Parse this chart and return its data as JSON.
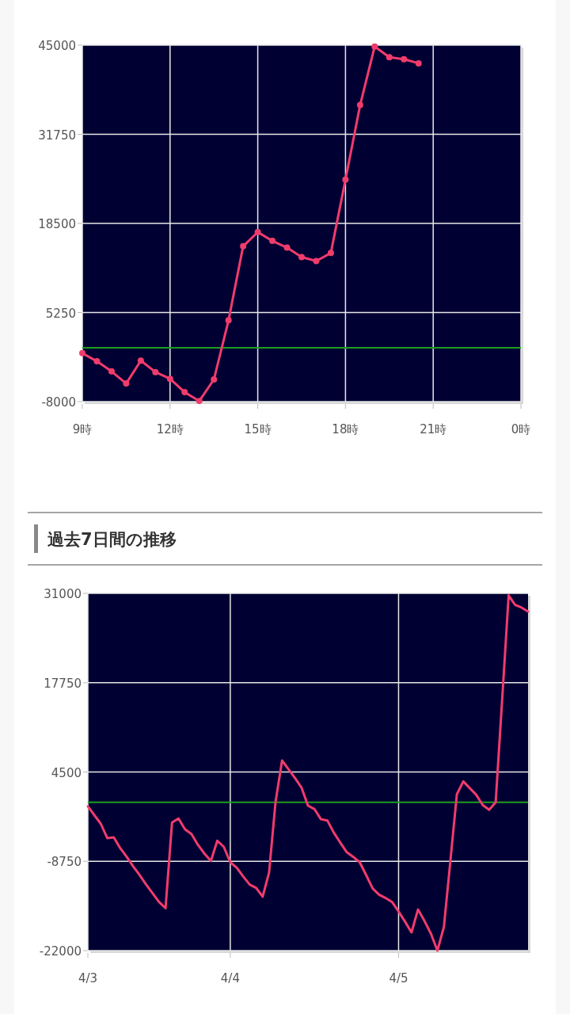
{
  "chart_data": [
    {
      "type": "line",
      "categories": [
        "9時",
        null,
        null,
        null,
        null,
        null,
        "12時",
        null,
        null,
        null,
        null,
        null,
        "15時",
        null,
        null,
        null,
        null,
        null,
        "18時",
        null,
        null,
        null,
        null,
        null,
        "21時",
        null,
        null,
        null,
        null,
        null,
        "0時"
      ],
      "series": [
        {
          "color": "#f03c6c",
          "values": [
            -800,
            -2000,
            -3500,
            -5300,
            -1900,
            -3600,
            -4600,
            -6600,
            -7900,
            -4700,
            4100,
            15100,
            17200,
            15900,
            14900,
            13500,
            12900,
            14100,
            25000,
            36100,
            44800,
            43200,
            42900,
            42300,
            null,
            null,
            null,
            null,
            null,
            null,
            null
          ]
        }
      ],
      "marker": "circle",
      "grid": true,
      "ylim": [
        -8000,
        45000
      ],
      "yticks": [
        -8000,
        5250,
        18500,
        31750,
        45000
      ],
      "ref_lines": [
        {
          "axis": "y",
          "value": 0,
          "color": "#1e9e1e"
        }
      ]
    },
    {
      "type": "line",
      "title": "過去7日間の推移",
      "categories": [
        "4/3",
        null,
        null,
        null,
        null,
        null,
        null,
        null,
        null,
        null,
        null,
        null,
        null,
        null,
        null,
        null,
        null,
        null,
        null,
        null,
        null,
        null,
        "4/4",
        null,
        null,
        null,
        null,
        null,
        null,
        null,
        null,
        null,
        null,
        null,
        null,
        null,
        null,
        null,
        null,
        null,
        null,
        null,
        null,
        null,
        null,
        null,
        null,
        null,
        "4/5",
        null,
        null,
        null,
        null,
        null,
        null,
        null,
        null,
        null,
        null,
        null,
        null,
        null,
        null,
        null,
        null,
        null,
        null,
        null,
        null
      ],
      "series": [
        {
          "color": "#f03c6c",
          "values": [
            -600,
            -1900,
            -3200,
            -5300,
            -5200,
            -6800,
            -8100,
            -9500,
            -10800,
            -12200,
            -13500,
            -14800,
            -15700,
            -3000,
            -2400,
            -4000,
            -4700,
            -6300,
            -7600,
            -8700,
            -5700,
            -6600,
            -8900,
            -9700,
            -11000,
            -12200,
            -12700,
            -14000,
            -10400,
            100,
            6200,
            4900,
            3600,
            2200,
            -500,
            -1000,
            -2500,
            -2700,
            -4500,
            -6000,
            -7400,
            -8100,
            -8900,
            -10800,
            -12800,
            -13700,
            -14200,
            -14800,
            -16200,
            -17700,
            -19300,
            -15900,
            -17600,
            -19500,
            -22000,
            -18500,
            -8700,
            1200,
            3100,
            2100,
            1100,
            -400,
            -1100,
            0,
            15200,
            30700,
            29300,
            28900,
            28300
          ]
        }
      ],
      "grid": true,
      "ylim": [
        -22000,
        31000
      ],
      "yticks": [
        -22000,
        -8750,
        4500,
        17750,
        31000
      ],
      "ref_lines": [
        {
          "axis": "y",
          "value": 0,
          "color": "#1e9e1e"
        }
      ]
    }
  ]
}
